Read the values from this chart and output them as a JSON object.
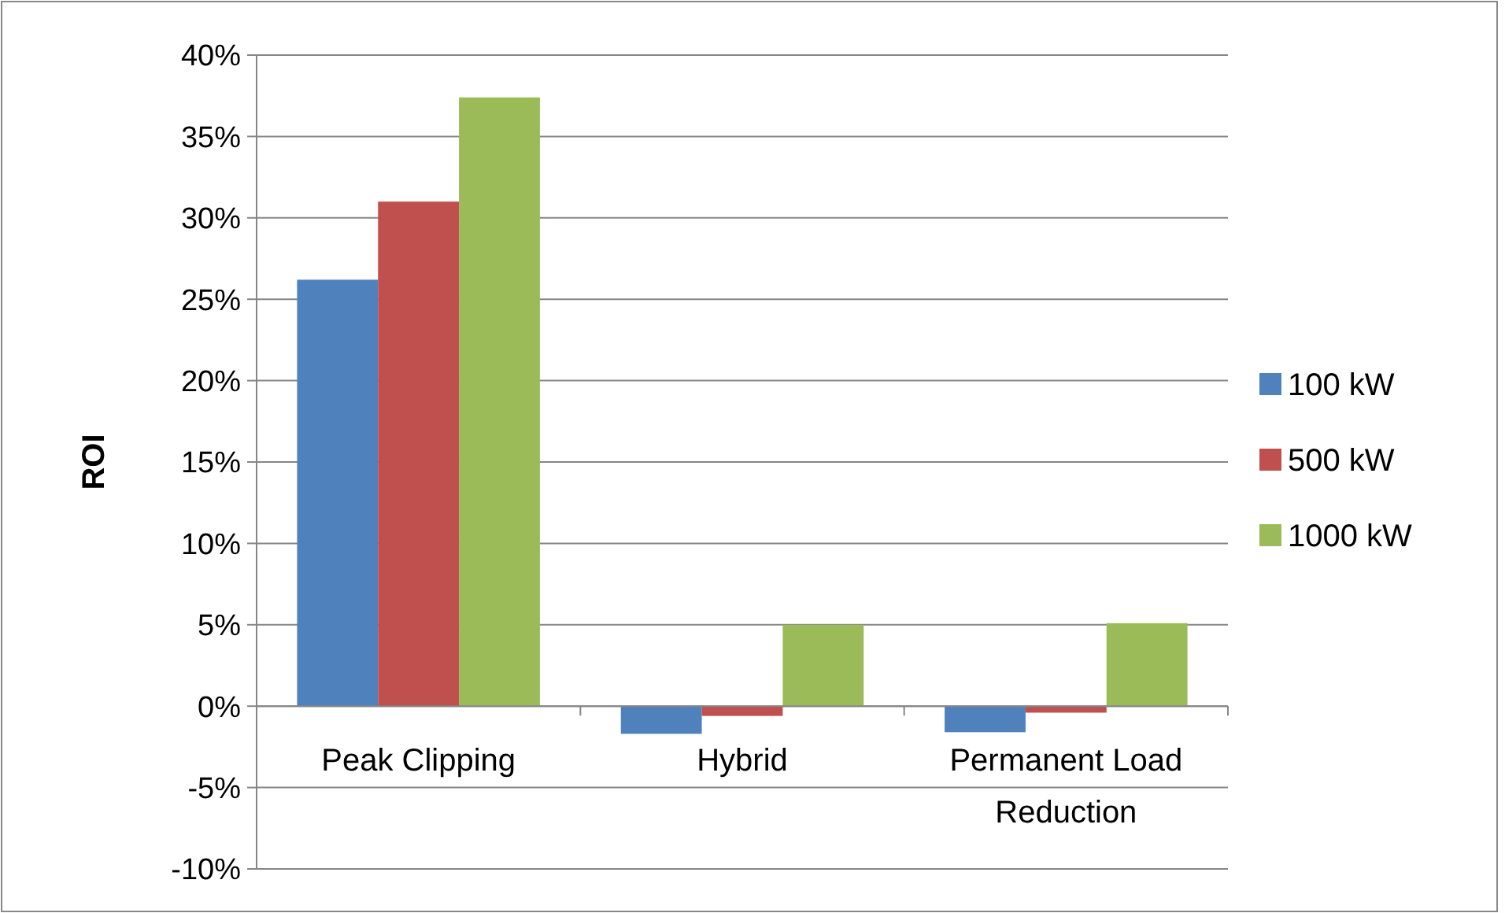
{
  "chart_data": {
    "type": "bar",
    "ylabel": "ROI",
    "categories": [
      "Peak Clipping",
      "Hybrid",
      "Permanent Load Reduction"
    ],
    "series": [
      {
        "name": "100 kW",
        "color": "#4f81bd",
        "values": [
          26.2,
          -1.7,
          -1.6
        ]
      },
      {
        "name": "500 kW",
        "color": "#c0504d",
        "values": [
          31,
          -0.6,
          -0.4
        ]
      },
      {
        "name": "1000 kW",
        "color": "#9bbb59",
        "values": [
          37.4,
          5,
          5.1
        ]
      }
    ],
    "ylim": [
      -10,
      40
    ],
    "yticks": [
      {
        "value": -10,
        "label": "-10%"
      },
      {
        "value": -5,
        "label": "-5%"
      },
      {
        "value": 0,
        "label": "0%"
      },
      {
        "value": 5,
        "label": "5%"
      },
      {
        "value": 10,
        "label": "10%"
      },
      {
        "value": 15,
        "label": "15%"
      },
      {
        "value": 20,
        "label": "20%"
      },
      {
        "value": 25,
        "label": "25%"
      },
      {
        "value": 30,
        "label": "30%"
      },
      {
        "value": 35,
        "label": "35%"
      },
      {
        "value": 40,
        "label": "40%"
      }
    ],
    "grid": "y",
    "legend": "right"
  }
}
